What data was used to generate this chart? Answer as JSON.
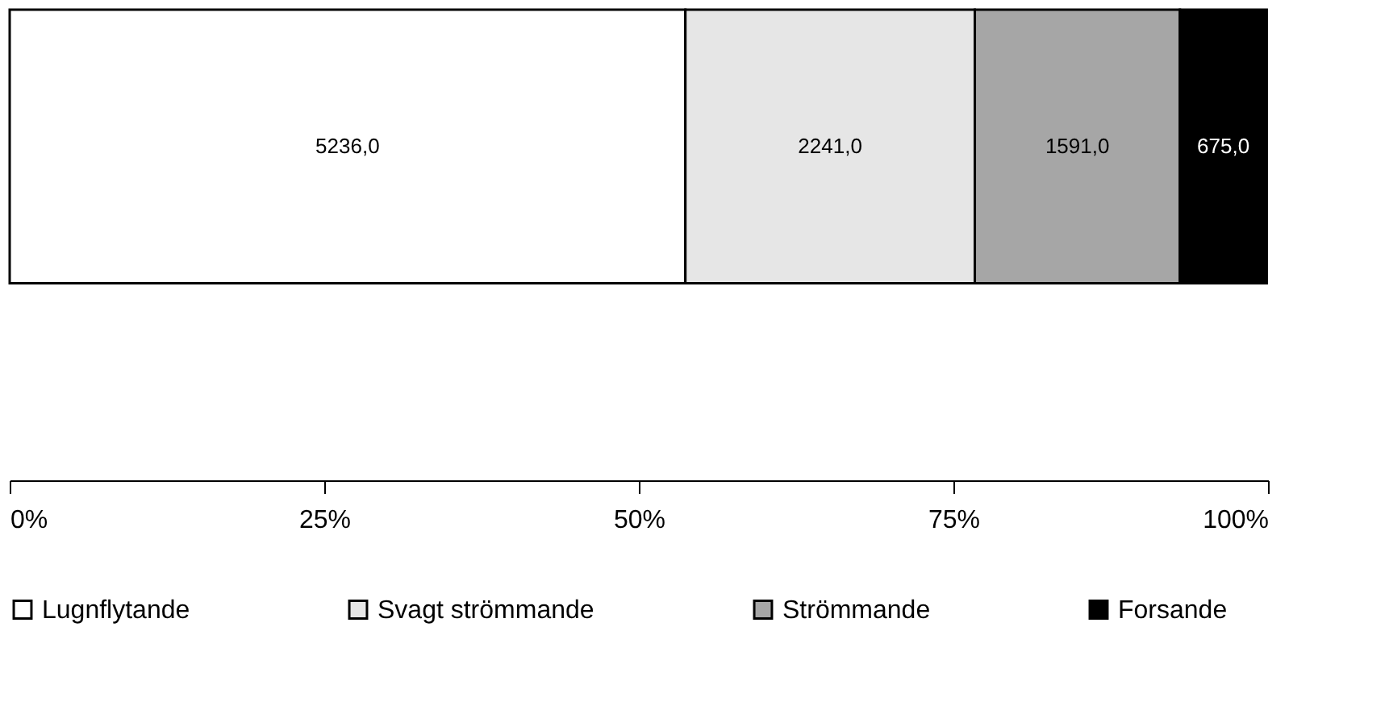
{
  "chart_data": {
    "type": "bar",
    "orientation": "horizontal",
    "stacked": true,
    "categories": [
      null
    ],
    "series": [
      {
        "name": "Lugnflytande",
        "color": "#ffffff",
        "values": [
          53.7
        ]
      },
      {
        "name": "Svagt strömmande",
        "color": "#e6e6e6",
        "values": [
          23.0
        ]
      },
      {
        "name": "Strömmande",
        "color": "#a6a6a6",
        "values": [
          16.3
        ]
      },
      {
        "name": "Forsande",
        "color": "#000000",
        "values": [
          6.9
        ]
      }
    ],
    "annotations": [
      "5236,0",
      "2241,0",
      "1591,0",
      "675,0"
    ],
    "xlim": [
      0,
      100
    ],
    "xticks": [
      {
        "value": 0,
        "label": "0%"
      },
      {
        "value": 25,
        "label": "25%"
      },
      {
        "value": 50,
        "label": "50%"
      },
      {
        "value": 75,
        "label": "75%"
      },
      {
        "value": 100,
        "label": "100%"
      }
    ],
    "tick_labels": "x",
    "grid": false,
    "legend": "bottom"
  }
}
